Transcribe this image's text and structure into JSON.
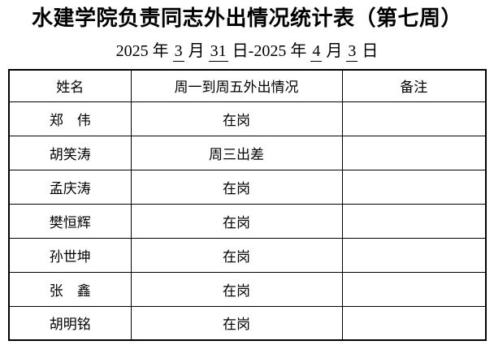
{
  "page": {
    "background_color": "#ffffff",
    "text_color": "#000000",
    "border_color": "#000000"
  },
  "title": "水建学院负责同志外出情况统计表（第七周）",
  "date_line": {
    "full_text": "2025 年 3 月 31 日-2025 年 4 月 3 日",
    "segments": [
      {
        "text": "2025 年 ",
        "underline": false
      },
      {
        "text": "3",
        "underline": true
      },
      {
        "text": " 月 ",
        "underline": false
      },
      {
        "text": "31",
        "underline": true
      },
      {
        "text": " 日-2025 年 ",
        "underline": false
      },
      {
        "text": "4",
        "underline": true
      },
      {
        "text": " 月 ",
        "underline": false
      },
      {
        "text": "3",
        "underline": true
      },
      {
        "text": " 日",
        "underline": false
      }
    ]
  },
  "table": {
    "headers": [
      "姓名",
      "周一到周五外出情况",
      "备注"
    ],
    "rows": [
      {
        "name": "郑　伟",
        "status": "在岗",
        "note": ""
      },
      {
        "name": "胡笑涛",
        "status": "周三出差",
        "note": ""
      },
      {
        "name": "孟庆涛",
        "status": "在岗",
        "note": ""
      },
      {
        "name": "樊恒辉",
        "status": "在岗",
        "note": ""
      },
      {
        "name": "孙世坤",
        "status": "在岗",
        "note": ""
      },
      {
        "name": "张　鑫",
        "status": "在岗",
        "note": ""
      },
      {
        "name": "胡明铭",
        "status": "在岗",
        "note": ""
      }
    ]
  }
}
